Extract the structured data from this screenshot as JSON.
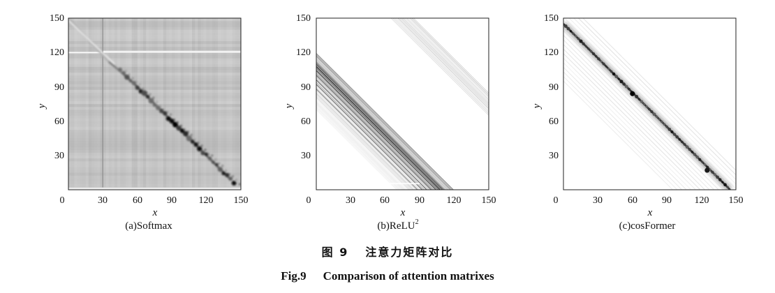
{
  "figure": {
    "caption_cn_label": "图 9",
    "caption_cn_text": "注意力矩阵对比",
    "caption_en_label": "Fig.9",
    "caption_en_text": "Comparison of attention matrixes"
  },
  "chart_data": [
    {
      "type": "heatmap",
      "panel": "a",
      "caption": "(a)Softmax",
      "xlabel": "x",
      "ylabel": "y",
      "xlim": [
        0,
        150
      ],
      "ylim": [
        0,
        150
      ],
      "xticks": [
        0,
        30,
        60,
        90,
        120,
        150
      ],
      "yticks": [
        30,
        60,
        90,
        120,
        150
      ],
      "colormap": "gray (white = low, black = high)",
      "background_level": 0.25,
      "diagonal": {
        "x_start": 0,
        "y_start": 150,
        "x_end": 150,
        "y_end": 0,
        "band": [
          [
            0,
            150,
            0.35
          ],
          [
            35,
            112,
            0.5
          ],
          [
            48,
            101,
            0.9
          ],
          [
            60,
            90,
            0.95
          ],
          [
            80,
            70,
            0.9
          ],
          [
            100,
            50,
            0.95
          ],
          [
            120,
            30,
            0.85
          ],
          [
            140,
            10,
            0.95
          ]
        ]
      },
      "features": [
        "horizontal band near y=120",
        "vertical line near x=30",
        "dark blobs along anti-diagonal from x=45 to x=145"
      ]
    },
    {
      "type": "heatmap",
      "panel": "b",
      "caption": "(b)ReLU",
      "caption_superscript": "2",
      "xlabel": "x",
      "ylabel": "y",
      "xlim": [
        0,
        150
      ],
      "ylim": [
        0,
        150
      ],
      "xticks": [
        0,
        30,
        60,
        90,
        120,
        150
      ],
      "yticks": [
        30,
        60,
        90,
        120,
        150
      ],
      "colormap": "gray (white = low, black = high)",
      "background_level": 0.0,
      "diagonal": {
        "x_start": 0,
        "y_start": 110,
        "x_end": 110,
        "y_end": 0,
        "band_width": 25,
        "peak": 0.9
      },
      "secondary_band": {
        "x_start": 75,
        "y_start": 150,
        "x_end": 150,
        "y_end": 70,
        "peak": 0.25
      }
    },
    {
      "type": "heatmap",
      "panel": "c",
      "caption": "(c)cosFormer",
      "xlabel": "x",
      "ylabel": "y",
      "xlim": [
        0,
        150
      ],
      "ylim": [
        0,
        150
      ],
      "xticks": [
        0,
        30,
        60,
        90,
        120,
        150
      ],
      "yticks": [
        30,
        60,
        90,
        120,
        150
      ],
      "colormap": "gray (white = low, black = high)",
      "background_level": 0.0,
      "diagonal": {
        "x_start": 0,
        "y_start": 145,
        "x_end": 145,
        "y_end": 0,
        "peak": 0.95
      },
      "hotspots": [
        [
          60,
          84,
          1.0
        ],
        [
          125,
          17,
          0.9
        ]
      ]
    }
  ]
}
